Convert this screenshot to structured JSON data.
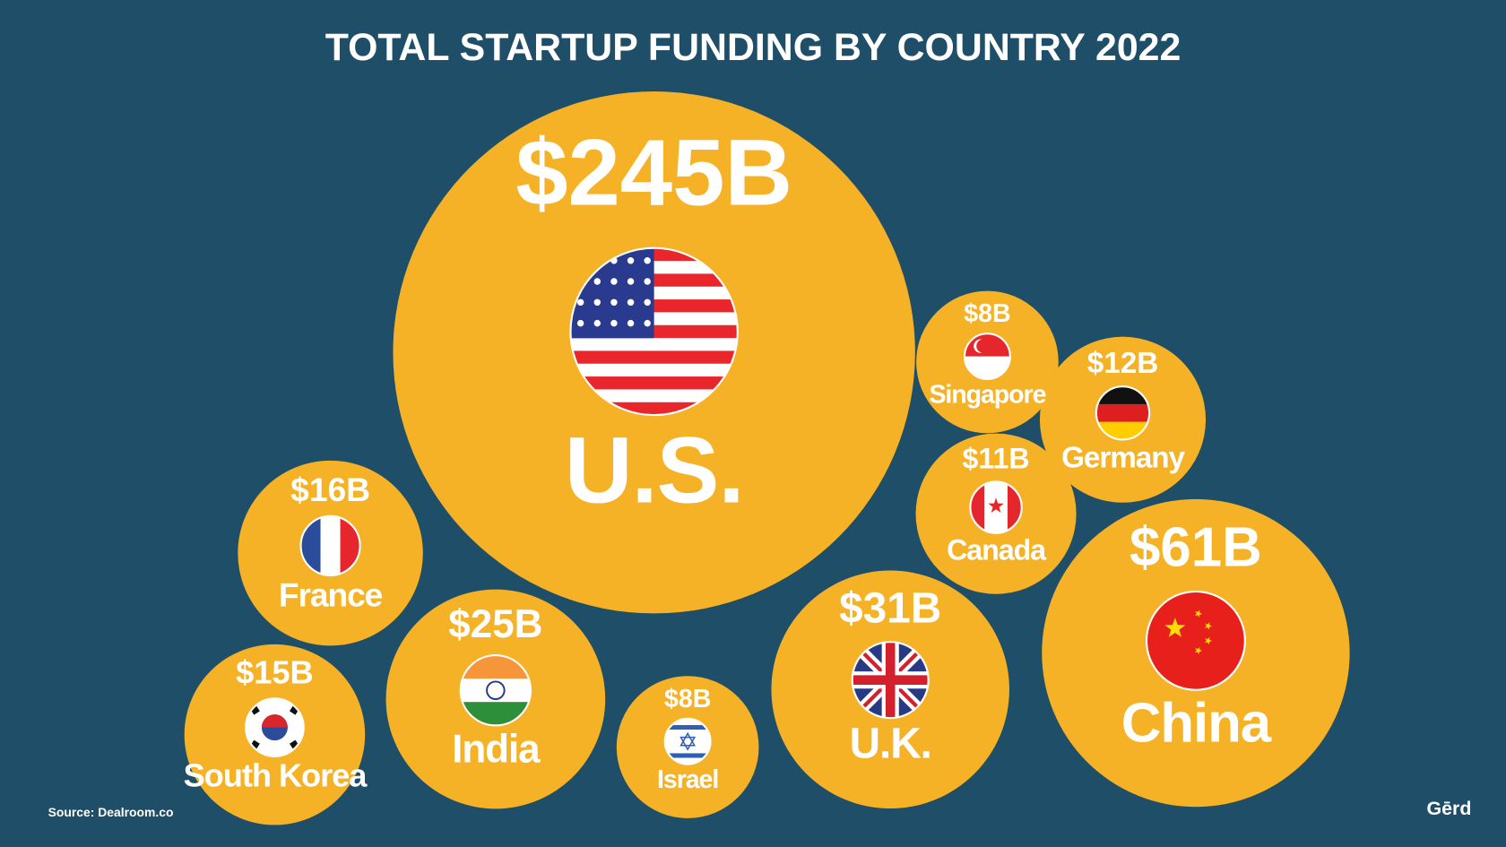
{
  "chart_data": {
    "type": "bubble",
    "title": "TOTAL STARTUP FUNDING BY COUNTRY 2022",
    "categories": [
      "U.S.",
      "China",
      "U.K.",
      "India",
      "France",
      "South Korea",
      "Germany",
      "Canada",
      "Singapore",
      "Israel"
    ],
    "values": [
      245,
      61,
      31,
      25,
      16,
      15,
      12,
      11,
      8,
      8
    ],
    "value_labels": [
      "$245B",
      "$61B",
      "$31B",
      "$25B",
      "$16B",
      "$15B",
      "$12B",
      "$11B",
      "$8B",
      "$8B"
    ],
    "color": "#f6b226",
    "source": "Source: Dealroom.co",
    "brand": "Gērd"
  }
}
